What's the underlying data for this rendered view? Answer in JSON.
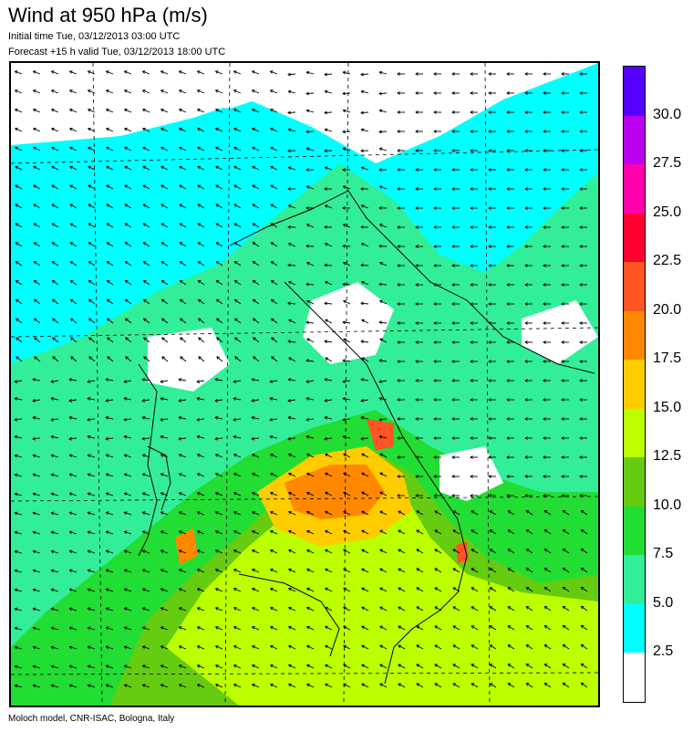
{
  "header": {
    "title": "Wind at 950 hPa (m/s)",
    "initial_time": "Initial time  Tue, 03/12/2013 03:00 UTC",
    "forecast_valid": "Forecast +15 h valid  Tue, 03/12/2013 18:00 UTC"
  },
  "footer": {
    "credit": "Moloch model, CNR-ISAC, Bologna, Italy"
  },
  "colorbar": {
    "labels": [
      "2.5",
      "5.0",
      "7.5",
      "10.0",
      "12.5",
      "15.0",
      "17.5",
      "20.0",
      "22.5",
      "25.0",
      "27.5",
      "30.0"
    ],
    "colors": [
      "#ffffff",
      "#00ffff",
      "#33ee99",
      "#22dd33",
      "#66cc11",
      "#bbff00",
      "#ffcc00",
      "#ff8800",
      "#ff5522",
      "#ff0033",
      "#ff00aa",
      "#bb00ee",
      "#5500ff"
    ]
  }
}
